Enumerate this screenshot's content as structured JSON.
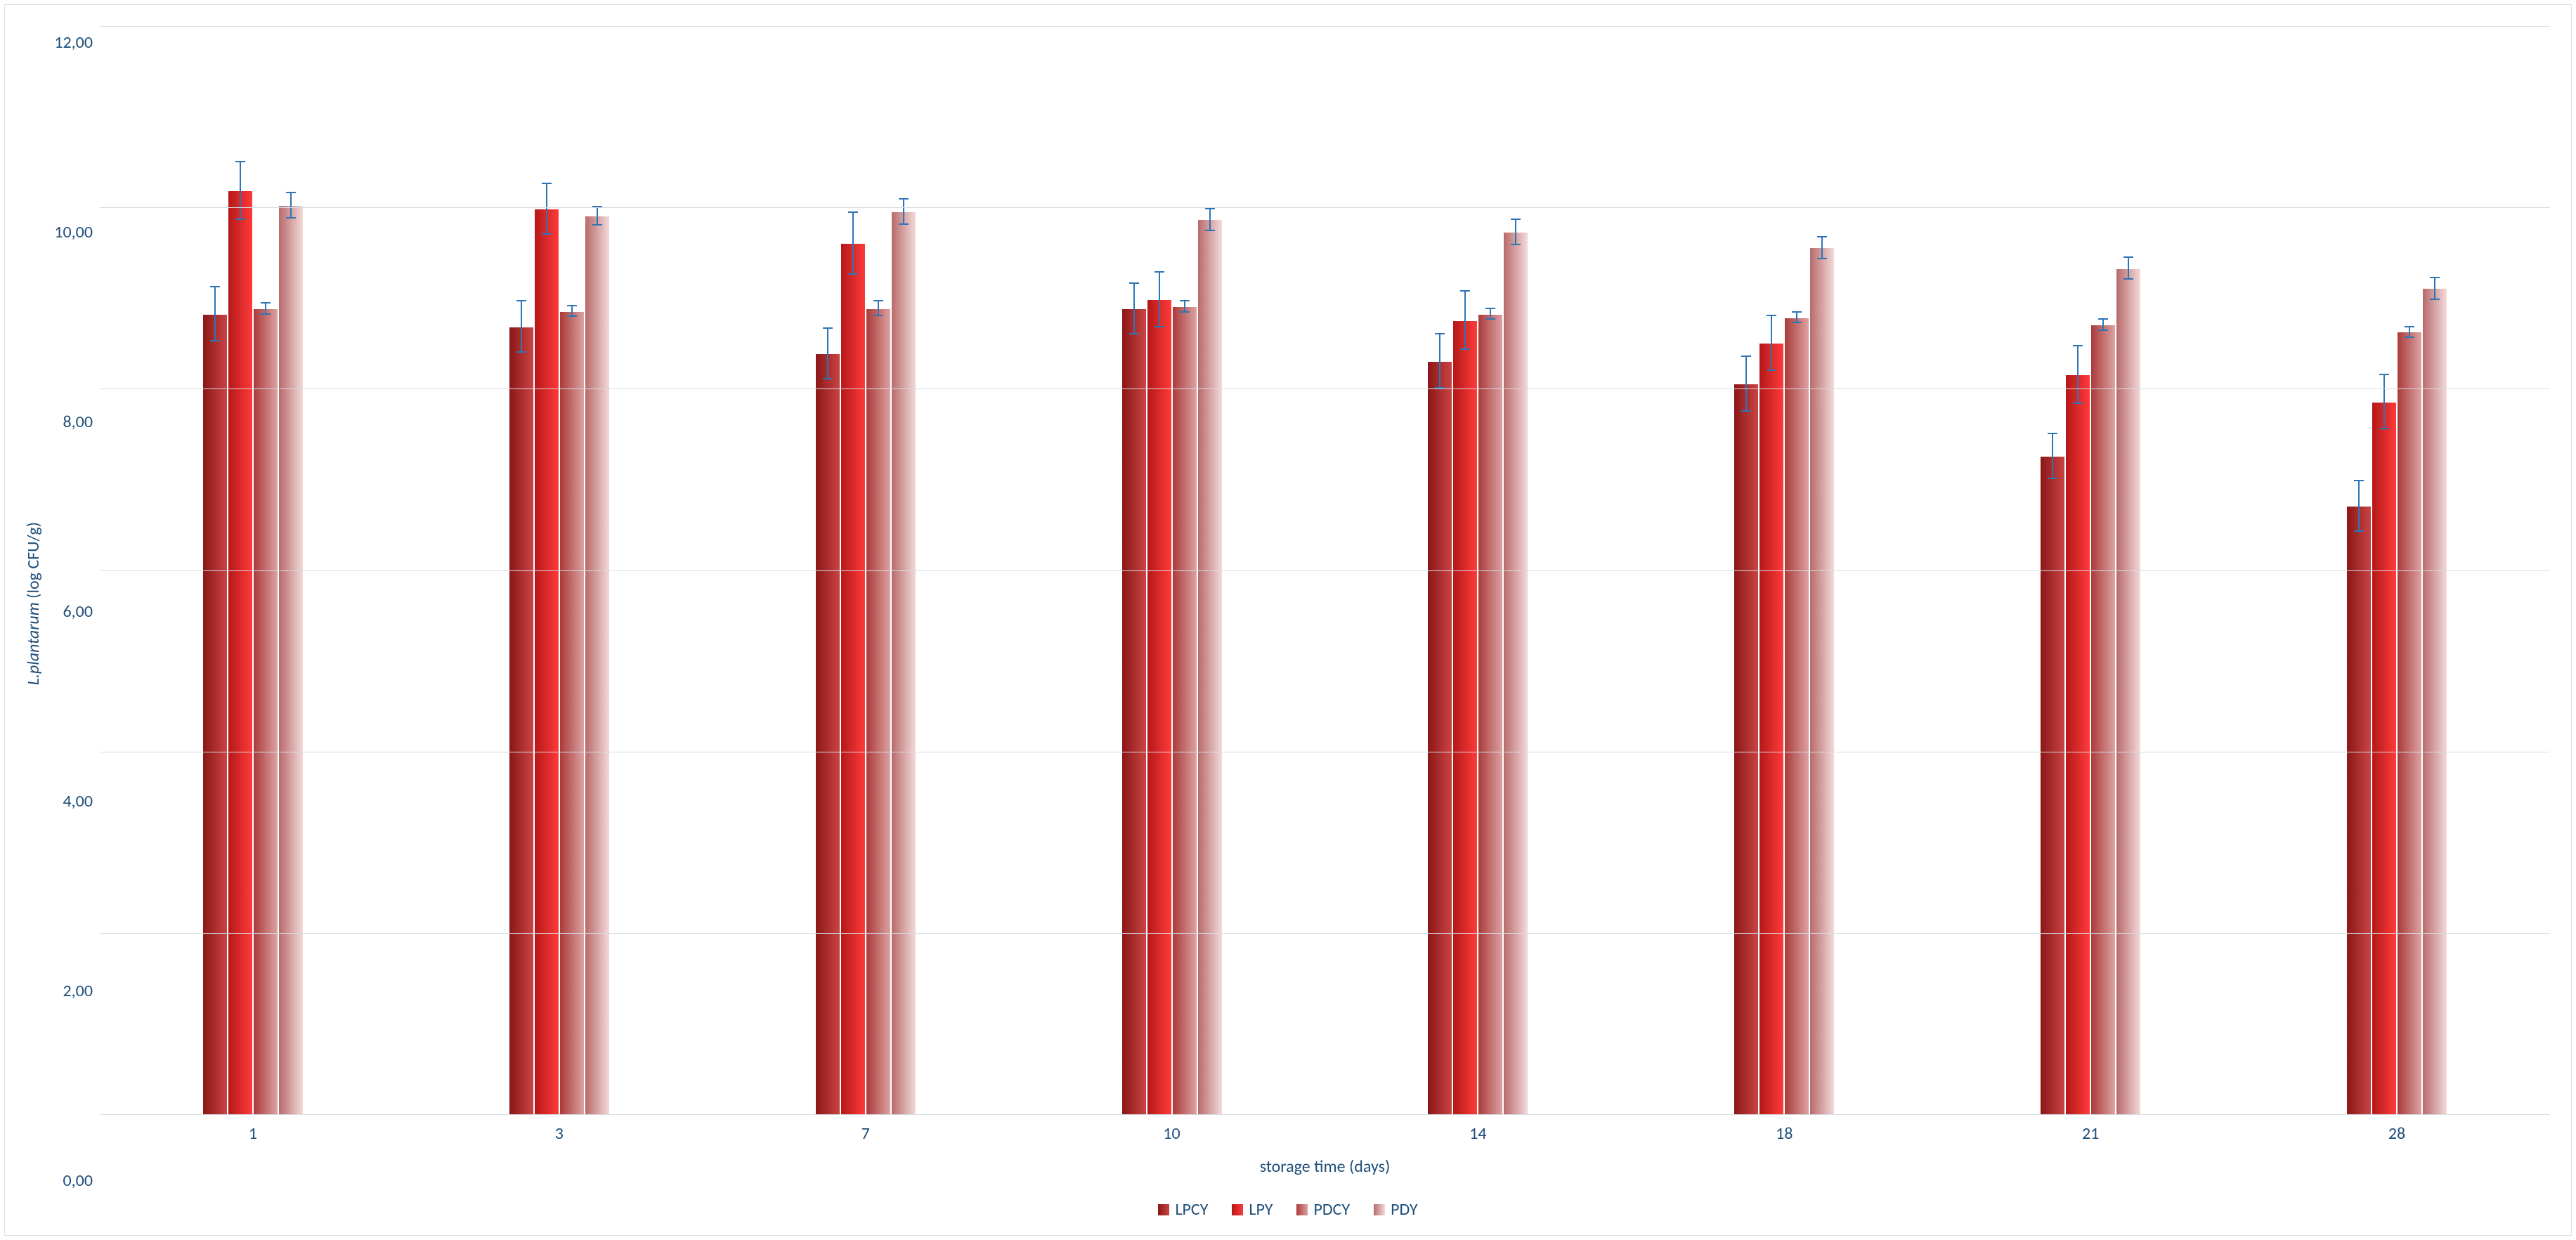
{
  "chart": {
    "type": "grouped-bar",
    "background_color": "#ffffff",
    "border_color": "#d6e2ee",
    "grid_color": "#d6dce4",
    "text_color": "#1f4e79",
    "error_bar_color": "#2e75b6",
    "tick_fontsize": 24,
    "axis_title_fontsize": 24,
    "legend_fontsize": 24,
    "y_axis": {
      "title_italic": "L.plantarum",
      "title_rest": "  (log CFU/g)",
      "min": 0,
      "max": 12,
      "tick_step": 2,
      "ticks": [
        "12,00",
        "10,00",
        "8,00",
        "6,00",
        "4,00",
        "2,00",
        "0,00"
      ]
    },
    "x_axis": {
      "title": "storage time (days)",
      "categories": [
        "1",
        "3",
        "7",
        "10",
        "14",
        "18",
        "21",
        "28"
      ]
    },
    "series": [
      {
        "name": "LPCY",
        "gradient_from": "#8c1616",
        "gradient_to": "#c94444",
        "swatch": "#a81e1e",
        "values": [
          8.82,
          8.68,
          8.38,
          8.88,
          8.3,
          8.05,
          7.25,
          6.7
        ],
        "errors": [
          0.3,
          0.28,
          0.28,
          0.28,
          0.3,
          0.3,
          0.25,
          0.28
        ]
      },
      {
        "name": "LPY",
        "gradient_from": "#b41818",
        "gradient_to": "#ff3a3a",
        "swatch": "#e32222",
        "values": [
          10.18,
          9.98,
          9.6,
          8.98,
          8.75,
          8.5,
          8.15,
          7.85
        ],
        "errors": [
          0.32,
          0.28,
          0.34,
          0.3,
          0.32,
          0.3,
          0.32,
          0.3
        ]
      },
      {
        "name": "PDCY",
        "gradient_from": "#aa3a3a",
        "gradient_to": "#dca2a2",
        "swatch": "#c98080",
        "values": [
          8.88,
          8.85,
          8.88,
          8.9,
          8.82,
          8.78,
          8.7,
          8.62
        ],
        "errors": [
          0.06,
          0.06,
          0.08,
          0.06,
          0.06,
          0.06,
          0.06,
          0.06
        ]
      },
      {
        "name": "PDY",
        "gradient_from": "#b86a6a",
        "gradient_to": "#f3dada",
        "swatch": "#dcb4b4",
        "values": [
          10.02,
          9.9,
          9.95,
          9.86,
          9.72,
          9.55,
          9.32,
          9.1
        ],
        "errors": [
          0.14,
          0.1,
          0.14,
          0.12,
          0.14,
          0.12,
          0.12,
          0.12
        ]
      }
    ]
  }
}
